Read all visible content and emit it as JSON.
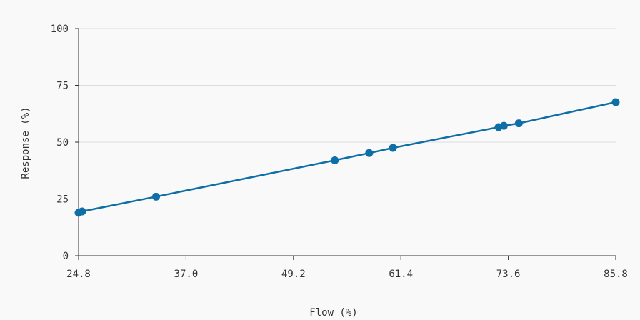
{
  "chart_data": {
    "type": "line",
    "title": "",
    "xlabel": "Flow (%)",
    "ylabel": "Response (%)",
    "xlim": [
      24.8,
      85.8
    ],
    "ylim": [
      0,
      100
    ],
    "x_ticks": [
      "24.8",
      "37.0",
      "49.2",
      "61.4",
      "73.6",
      "85.8"
    ],
    "y_ticks": [
      "0",
      "25",
      "50",
      "75",
      "100"
    ],
    "grid": true,
    "legend": "none",
    "series": [
      {
        "color": "#0e6ea6",
        "points": [
          [
            24.8,
            18.9
          ],
          [
            25.2,
            19.5
          ],
          [
            33.6,
            26.0
          ],
          [
            53.9,
            42.0
          ],
          [
            57.8,
            45.2
          ],
          [
            60.5,
            47.5
          ],
          [
            72.5,
            56.6
          ],
          [
            73.1,
            57.2
          ],
          [
            74.8,
            58.3
          ],
          [
            85.8,
            67.6
          ]
        ]
      }
    ]
  }
}
